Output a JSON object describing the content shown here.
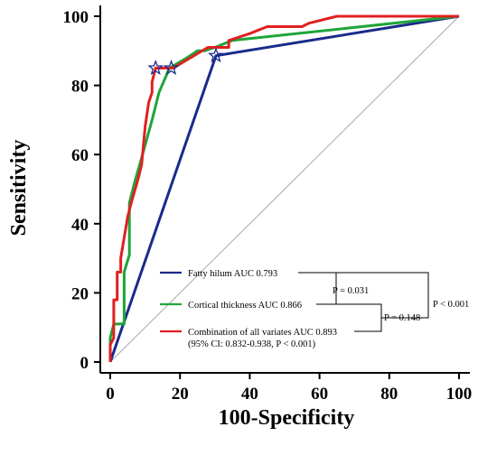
{
  "chart_data": {
    "type": "line",
    "xlabel": "100-Specificity",
    "ylabel": "Sensitivity",
    "xlim": [
      0,
      100
    ],
    "ylim": [
      0,
      100
    ],
    "x_ticks": [
      "0",
      "20",
      "40",
      "60",
      "80",
      "100"
    ],
    "y_ticks": [
      "0",
      "20",
      "40",
      "60",
      "80",
      "100"
    ],
    "diagonal_reference": true,
    "series": [
      {
        "name": "Fatty hilum AUC 0.793",
        "color": "#1a2a8c",
        "x": [
          0,
          30.3,
          100
        ],
        "y": [
          0,
          88.6,
          100
        ],
        "marker_x": 30.3,
        "marker_y": 88.6
      },
      {
        "name": "Cortical thickness AUC 0.866",
        "color": "#1fa53a",
        "x": [
          0,
          0,
          1,
          4,
          4,
          5.5,
          5.5,
          7,
          9,
          12,
          14,
          17,
          22,
          25,
          27,
          30,
          35,
          100
        ],
        "y": [
          0,
          7,
          11,
          11,
          26,
          31,
          46,
          52,
          59,
          70,
          78,
          85,
          88,
          90,
          90,
          91,
          93,
          100
        ],
        "marker_x": 17.5,
        "marker_y": 85
      },
      {
        "name": "Combination of all variates AUC 0.893",
        "color": "#e02020",
        "x": [
          0,
          0,
          1,
          1,
          2,
          2,
          3,
          3,
          5,
          6,
          8,
          9,
          10,
          11,
          12,
          12,
          13,
          14,
          15,
          16,
          18,
          23,
          28,
          30,
          34,
          34,
          40,
          45,
          55,
          57,
          65,
          100
        ],
        "y": [
          0,
          5,
          7,
          18,
          18,
          26,
          26,
          30,
          42,
          46,
          53,
          57,
          68,
          75,
          78,
          81,
          85,
          85,
          85,
          85,
          85,
          88,
          91,
          91,
          91,
          93,
          95,
          97,
          97,
          98,
          100,
          100
        ],
        "marker_x": 13,
        "marker_y": 85
      }
    ],
    "legend": {
      "placement": "bottom-right",
      "entries": [
        "Fatty hilum AUC 0.793",
        "Cortical thickness AUC 0.866",
        "Combination of all variates AUC 0.893"
      ],
      "note": "(95% CI: 0.832-0.938, P < 0.001)"
    },
    "comparisons": [
      {
        "label": "P = 0.031",
        "between": [
          "Fatty hilum",
          "Cortical thickness"
        ]
      },
      {
        "label": "P = 0.148",
        "between": [
          "Cortical thickness",
          "Combination of all variates"
        ]
      },
      {
        "label": "P < 0.001",
        "between": [
          "Fatty hilum",
          "Combination of all variates"
        ]
      }
    ]
  }
}
